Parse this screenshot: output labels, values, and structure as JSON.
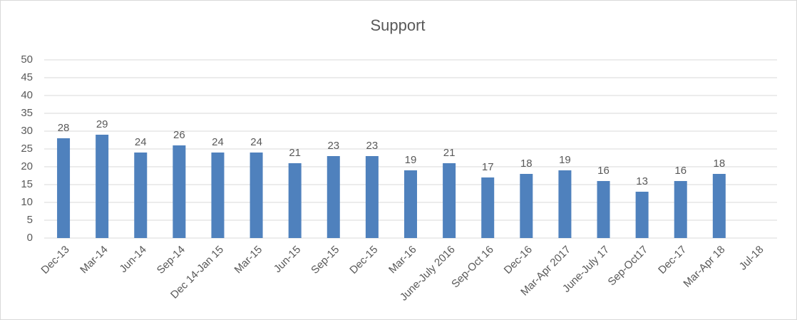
{
  "chart_data": {
    "type": "bar",
    "title": "Support",
    "categories": [
      "Dec-13",
      "Mar-14",
      "Jun-14",
      "Sep-14",
      "Dec 14-Jan 15",
      "Mar-15",
      "Jun-15",
      "Sep-15",
      "Dec-15",
      "Mar-16",
      "June-July 2016",
      "Sep-Oct 16",
      "Dec-16",
      "Mar-Apr 2017",
      "June-July 17",
      "Sep-Oct17",
      "Dec-17",
      "Mar-Apr 18",
      "Jul-18"
    ],
    "values": [
      28,
      29,
      24,
      26,
      24,
      24,
      21,
      23,
      23,
      19,
      21,
      17,
      18,
      19,
      16,
      13,
      16,
      18,
      null
    ],
    "color": "#4f81bd",
    "ylim": [
      0,
      50
    ],
    "yticks": [
      0,
      5,
      10,
      15,
      20,
      25,
      30,
      35,
      40,
      45,
      50
    ],
    "grid": true
  }
}
